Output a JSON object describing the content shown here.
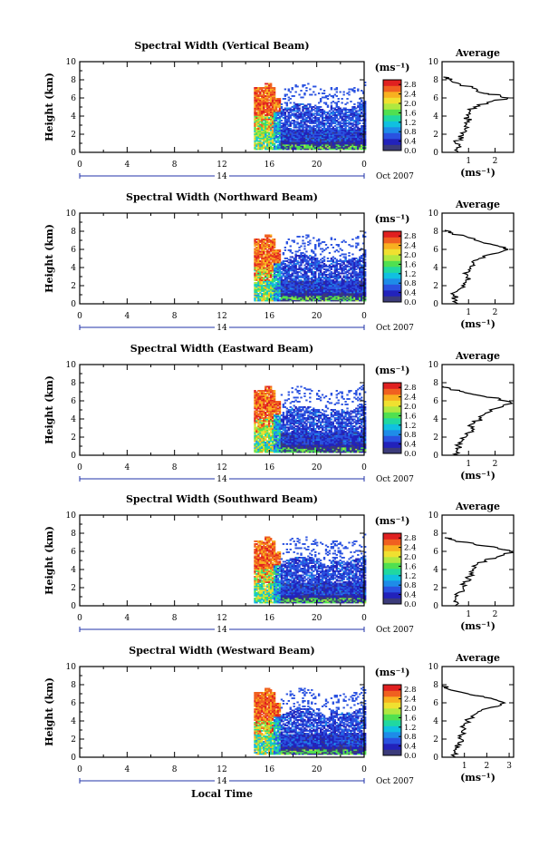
{
  "figure": {
    "xlabel": "Local Time",
    "day_label": "14",
    "date_label": "Oct 2007"
  },
  "colors": {
    "scale": [
      "#3b3b7a",
      "#2222bb",
      "#2a52e0",
      "#1e8ce8",
      "#10c0e0",
      "#20d8a0",
      "#50e050",
      "#b0e840",
      "#f0e030",
      "#f8b020",
      "#f06020",
      "#e02020"
    ]
  },
  "chart_data": [
    {
      "type": "heatmap",
      "title": "Spectral Width (Vertical Beam)",
      "ylabel": "Height (km)",
      "xlim": [
        0,
        24
      ],
      "ylim": [
        0,
        10
      ],
      "x_ticks": [
        "0",
        "4",
        "8",
        "12",
        "16",
        "20",
        "0"
      ],
      "y_ticks": [
        "0",
        "2",
        "4",
        "6",
        "8",
        "10"
      ],
      "colorbar": {
        "label": "(ms⁻¹)",
        "ticks": [
          "0.0",
          "0.4",
          "0.8",
          "1.2",
          "1.6",
          "2.0",
          "2.4",
          "2.8"
        ],
        "range": [
          0,
          3.0
        ]
      },
      "profile": {
        "title": "Average",
        "xlabel": "(ms⁻¹)",
        "x_ticks": [
          "1",
          "2"
        ],
        "x_tick_values": [
          1,
          2
        ],
        "xlim": [
          0,
          2.7
        ],
        "values": [
          [
            0.6,
            0
          ],
          [
            0.55,
            0.5
          ],
          [
            0.5,
            1
          ],
          [
            0.65,
            1.5
          ],
          [
            0.8,
            2
          ],
          [
            0.85,
            2.5
          ],
          [
            0.9,
            3
          ],
          [
            0.95,
            3.5
          ],
          [
            1.0,
            4
          ],
          [
            1.05,
            4.5
          ],
          [
            1.2,
            5
          ],
          [
            1.7,
            5.5
          ],
          [
            2.5,
            6
          ],
          [
            2.2,
            6.3
          ],
          [
            1.6,
            6.5
          ],
          [
            1.3,
            7
          ],
          [
            0.7,
            7.5
          ],
          [
            0.3,
            8
          ],
          [
            0.05,
            8.3
          ]
        ]
      }
    },
    {
      "type": "heatmap",
      "title": "Spectral Width (Northward Beam)",
      "ylabel": "Height (km)",
      "xlim": [
        0,
        24
      ],
      "ylim": [
        0,
        10
      ],
      "x_ticks": [
        "0",
        "4",
        "8",
        "12",
        "16",
        "20",
        "0"
      ],
      "y_ticks": [
        "0",
        "2",
        "4",
        "6",
        "8",
        "10"
      ],
      "colorbar": {
        "label": "(ms⁻¹)",
        "ticks": [
          "0.0",
          "0.4",
          "0.8",
          "1.2",
          "1.6",
          "2.0",
          "2.4",
          "2.8"
        ],
        "range": [
          0,
          3.0
        ]
      },
      "profile": {
        "title": "Average",
        "xlabel": "(ms⁻¹)",
        "x_ticks": [
          "1",
          "2"
        ],
        "x_tick_values": [
          1,
          2
        ],
        "xlim": [
          0,
          2.7
        ],
        "values": [
          [
            0.6,
            0
          ],
          [
            0.5,
            0.5
          ],
          [
            0.45,
            1
          ],
          [
            0.6,
            1.5
          ],
          [
            0.75,
            2
          ],
          [
            0.9,
            2.5
          ],
          [
            0.95,
            3
          ],
          [
            1.0,
            3.5
          ],
          [
            1.05,
            4
          ],
          [
            1.2,
            4.5
          ],
          [
            1.4,
            5
          ],
          [
            1.9,
            5.5
          ],
          [
            2.5,
            6
          ],
          [
            2.1,
            6.4
          ],
          [
            1.5,
            6.8
          ],
          [
            1.0,
            7.3
          ],
          [
            0.4,
            7.8
          ],
          [
            0.1,
            8.1
          ]
        ]
      }
    },
    {
      "type": "heatmap",
      "title": "Spectral Width (Eastward Beam)",
      "ylabel": "Height (km)",
      "xlim": [
        0,
        24
      ],
      "ylim": [
        0,
        10
      ],
      "x_ticks": [
        "0",
        "4",
        "8",
        "12",
        "16",
        "20",
        "0"
      ],
      "y_ticks": [
        "0",
        "2",
        "4",
        "6",
        "8",
        "10"
      ],
      "colorbar": {
        "label": "(ms⁻¹)",
        "ticks": [
          "0.0",
          "0.4",
          "0.8",
          "1.2",
          "1.6",
          "2.0",
          "2.4",
          "2.8"
        ],
        "range": [
          0,
          3.0
        ]
      },
      "profile": {
        "title": "Average",
        "xlabel": "(ms⁻¹)",
        "x_ticks": [
          "1",
          "2"
        ],
        "x_tick_values": [
          1,
          2
        ],
        "xlim": [
          0,
          2.7
        ],
        "values": [
          [
            0.6,
            0
          ],
          [
            0.55,
            0.5
          ],
          [
            0.6,
            1
          ],
          [
            0.75,
            1.5
          ],
          [
            0.9,
            2
          ],
          [
            1.0,
            2.5
          ],
          [
            1.1,
            3
          ],
          [
            1.2,
            3.5
          ],
          [
            1.4,
            4
          ],
          [
            1.6,
            4.5
          ],
          [
            1.8,
            5
          ],
          [
            2.3,
            5.5
          ],
          [
            2.6,
            5.8
          ],
          [
            2.2,
            6.2
          ],
          [
            1.4,
            6.6
          ],
          [
            0.8,
            7
          ],
          [
            0.3,
            7.3
          ],
          [
            0.05,
            7.6
          ]
        ]
      }
    },
    {
      "type": "heatmap",
      "title": "Spectral Width (Southward Beam)",
      "ylabel": "Height (km)",
      "xlim": [
        0,
        24
      ],
      "ylim": [
        0,
        10
      ],
      "x_ticks": [
        "0",
        "4",
        "8",
        "12",
        "16",
        "20",
        "0"
      ],
      "y_ticks": [
        "0",
        "2",
        "4",
        "6",
        "8",
        "10"
      ],
      "colorbar": {
        "label": "(ms⁻¹)",
        "ticks": [
          "0.0",
          "0.4",
          "0.8",
          "1.2",
          "1.6",
          "2.0",
          "2.4",
          "2.8"
        ],
        "range": [
          0,
          3.0
        ]
      },
      "profile": {
        "title": "Average",
        "xlabel": "(ms⁻¹)",
        "x_ticks": [
          "1",
          "2"
        ],
        "x_tick_values": [
          1,
          2
        ],
        "xlim": [
          0,
          2.7
        ],
        "values": [
          [
            0.5,
            0
          ],
          [
            0.45,
            0.5
          ],
          [
            0.5,
            1
          ],
          [
            0.65,
            1.5
          ],
          [
            0.8,
            2
          ],
          [
            0.85,
            2.5
          ],
          [
            0.95,
            3
          ],
          [
            1.05,
            3.5
          ],
          [
            1.15,
            4
          ],
          [
            1.3,
            4.5
          ],
          [
            1.6,
            5
          ],
          [
            2.2,
            5.5
          ],
          [
            2.6,
            6
          ],
          [
            2.1,
            6.4
          ],
          [
            1.2,
            6.8
          ],
          [
            0.5,
            7.2
          ],
          [
            0.1,
            7.5
          ]
        ]
      }
    },
    {
      "type": "heatmap",
      "title": "Spectral Width (Westward Beam)",
      "ylabel": "Height (km)",
      "xlim": [
        0,
        24
      ],
      "ylim": [
        0,
        10
      ],
      "x_ticks": [
        "0",
        "4",
        "8",
        "12",
        "16",
        "20",
        "0"
      ],
      "y_ticks": [
        "0",
        "2",
        "4",
        "6",
        "8",
        "10"
      ],
      "colorbar": {
        "label": "(ms⁻¹)",
        "ticks": [
          "0.0",
          "0.4",
          "0.8",
          "1.2",
          "1.6",
          "2.0",
          "2.4",
          "2.8"
        ],
        "range": [
          0,
          3.0
        ]
      },
      "profile": {
        "title": "Average",
        "xlabel": "(ms⁻¹)",
        "x_ticks": [
          "1",
          "2",
          "3"
        ],
        "x_tick_values": [
          1,
          2,
          3
        ],
        "xlim": [
          0,
          3.2
        ],
        "values": [
          [
            0.6,
            0
          ],
          [
            0.55,
            0.5
          ],
          [
            0.6,
            1
          ],
          [
            0.7,
            1.5
          ],
          [
            0.85,
            2
          ],
          [
            0.9,
            2.5
          ],
          [
            0.95,
            3
          ],
          [
            1.0,
            3.5
          ],
          [
            1.1,
            4
          ],
          [
            1.3,
            4.5
          ],
          [
            1.6,
            5
          ],
          [
            2.2,
            5.5
          ],
          [
            2.8,
            6
          ],
          [
            2.3,
            6.4
          ],
          [
            1.5,
            6.8
          ],
          [
            0.8,
            7.2
          ],
          [
            0.2,
            7.6
          ],
          [
            0.05,
            7.9
          ]
        ]
      }
    }
  ]
}
